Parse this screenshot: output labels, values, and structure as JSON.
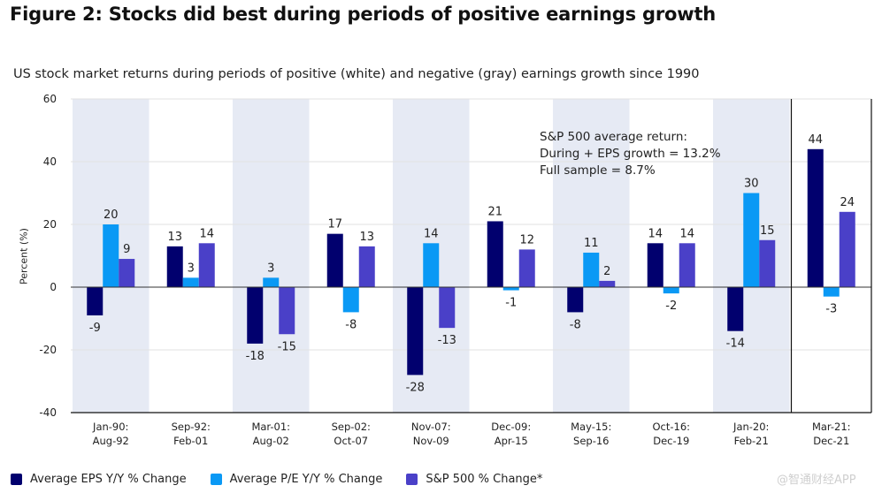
{
  "header": {
    "title": "Figure 2: Stocks did best during periods of positive earnings growth",
    "subtitle": "US stock market returns during periods of positive (white) and negative (gray) earnings growth since 1990"
  },
  "annotation": {
    "line1": "S&P 500 average return:",
    "line2": "During + EPS growth = 13.2%",
    "line3": "Full sample = 8.7%"
  },
  "watermark": "@智通财经APP",
  "colors": {
    "eps": "#01006e",
    "pe": "#0a99f5",
    "sp500": "#4a40c8",
    "shade": "#e6eaf4",
    "grid": "#e2e2e2",
    "axis": "#333333"
  },
  "chart_data": {
    "type": "bar",
    "title": "Figure 2: Stocks did best during periods of positive earnings growth",
    "subtitle": "US stock market returns during periods of positive (white) and negative (gray) earnings growth since 1990",
    "xlabel": "",
    "ylabel": "Percent (%)",
    "ylim": [
      -40,
      60
    ],
    "yticks": [
      60,
      40,
      20,
      0,
      -20,
      -40
    ],
    "grid": true,
    "legend_position": "bottom-left",
    "categories": [
      [
        "Jan-90:",
        "Aug-92"
      ],
      [
        "Sep-92:",
        "Feb-01"
      ],
      [
        "Mar-01:",
        "Aug-02"
      ],
      [
        "Sep-02:",
        "Oct-07"
      ],
      [
        "Nov-07:",
        "Nov-09"
      ],
      [
        "Dec-09:",
        "Apr-15"
      ],
      [
        "May-15:",
        "Sep-16"
      ],
      [
        "Oct-16:",
        "Dec-19"
      ],
      [
        "Jan-20:",
        "Feb-21"
      ],
      [
        "Mar-21:",
        "Dec-21"
      ]
    ],
    "shaded_negative_eps_periods": [
      true,
      false,
      true,
      false,
      true,
      false,
      true,
      false,
      true,
      false
    ],
    "boxed_period_index": 9,
    "series": [
      {
        "name": "Average EPS Y/Y % Change",
        "key": "eps",
        "values": [
          -9,
          13,
          -18,
          17,
          -28,
          21,
          -8,
          14,
          -14,
          44
        ]
      },
      {
        "name": "Average P/E Y/Y % Change",
        "key": "pe",
        "values": [
          20,
          3,
          3,
          -8,
          14,
          -1,
          11,
          -2,
          30,
          -3
        ]
      },
      {
        "name": "S&P 500 % Change*",
        "key": "sp500",
        "values": [
          9,
          14,
          -15,
          13,
          -13,
          12,
          2,
          14,
          15,
          24
        ]
      }
    ],
    "data_labels": {
      "eps": [
        "-9",
        "13",
        "-18",
        "17",
        "-28",
        "21",
        "-8",
        "14",
        "-14",
        "44"
      ],
      "pe": [
        "20",
        "3",
        "3",
        "-8",
        "14",
        "-1",
        "11",
        "-2",
        "30",
        "-3"
      ],
      "sp500": [
        "9",
        "14",
        "-15",
        "13",
        "-13",
        "12",
        "2",
        "14",
        "15",
        "24"
      ]
    },
    "annotation": [
      "S&P 500 average return:",
      "During + EPS growth = 13.2%",
      "Full sample = 8.7%"
    ]
  }
}
